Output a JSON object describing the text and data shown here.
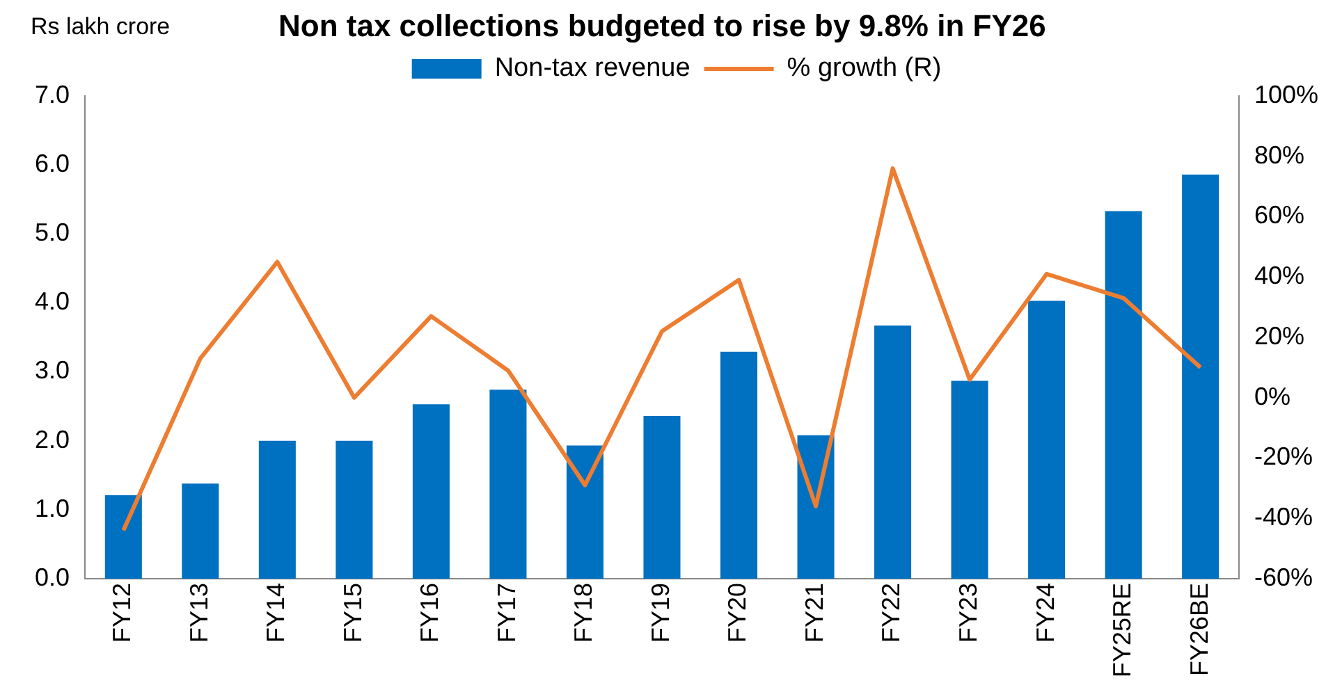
{
  "chart_data": {
    "type": "bar",
    "title": "Non tax collections budgeted to rise by 9.8% in FY26",
    "ylabel": "Rs lakh crore",
    "categories": [
      "FY12",
      "FY13",
      "FY14",
      "FY15",
      "FY16",
      "FY17",
      "FY18",
      "FY19",
      "FY20",
      "FY21",
      "FY22",
      "FY23",
      "FY24",
      "FY25RE",
      "FY26BE"
    ],
    "series": [
      {
        "name": "Non-tax revenue",
        "color": "#0070c0",
        "values": [
          1.21,
          1.38,
          2.0,
          2.0,
          2.53,
          2.74,
          1.93,
          2.36,
          3.29,
          2.08,
          3.67,
          2.87,
          4.03,
          5.33,
          5.86
        ]
      },
      {
        "name": "% growth (R)",
        "type": "line",
        "axis": "y2",
        "color": "#ed7d31",
        "values": [
          -44,
          13,
          45,
          0,
          27,
          9,
          -29,
          22,
          39,
          -36,
          76,
          6,
          41,
          33,
          10
        ]
      }
    ],
    "ylim": [
      0,
      7
    ],
    "yticks": [
      {
        "value": 0,
        "label": "0.0"
      },
      {
        "value": 1,
        "label": "1.0"
      },
      {
        "value": 2,
        "label": "2.0"
      },
      {
        "value": 3,
        "label": "3.0"
      },
      {
        "value": 4,
        "label": "4.0"
      },
      {
        "value": 5,
        "label": "5.0"
      },
      {
        "value": 6,
        "label": "6.0"
      },
      {
        "value": 7,
        "label": "7.0"
      }
    ],
    "y2lim": [
      -60,
      100
    ],
    "y2ticks": [
      {
        "value": -60,
        "label": "-60%"
      },
      {
        "value": -40,
        "label": "-40%"
      },
      {
        "value": -20,
        "label": "-20%"
      },
      {
        "value": 0,
        "label": "0%"
      },
      {
        "value": 20,
        "label": "20%"
      },
      {
        "value": 40,
        "label": "40%"
      },
      {
        "value": 60,
        "label": "60%"
      },
      {
        "value": 80,
        "label": "80%"
      },
      {
        "value": 100,
        "label": "100%"
      }
    ],
    "grid": false,
    "legend": "top",
    "marker": "none",
    "line_style": "solid"
  }
}
